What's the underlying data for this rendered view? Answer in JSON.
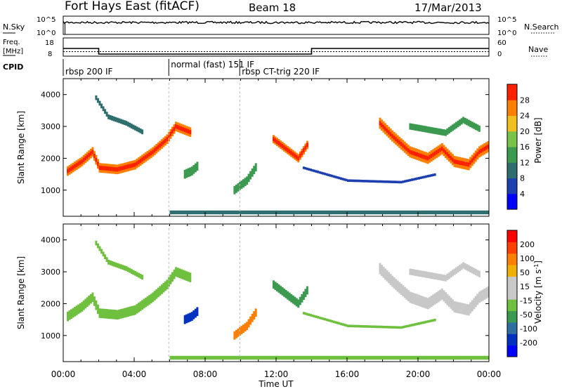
{
  "header": {
    "title": "Fort Hays East (fitACF)",
    "beam": "Beam 18",
    "date": "17/Mar/2013"
  },
  "top_panels": {
    "nsky_label": "N.Sky",
    "nsearch_label": "N.Search",
    "freq_label_1": "Freq.",
    "freq_label_2": "[MHz]",
    "nave_label": "Nave",
    "cpid_label": "CPID",
    "nsky_ticks": [
      "10^5",
      "10^0"
    ],
    "nsearch_ticks": [
      "10^5",
      "10^0"
    ],
    "freq_ticks": [
      "18",
      "8"
    ],
    "nave_ticks": [
      "60",
      "0"
    ],
    "freq_steps": [
      [
        0,
        13.5
      ],
      [
        2.0,
        9.5
      ],
      [
        14.0,
        13.5
      ],
      [
        24,
        13.5
      ]
    ],
    "nave_level": 15
  },
  "cpid_segments": [
    {
      "start": 0.0,
      "label": "rbsp 200 IF"
    },
    {
      "start": 5.95,
      "label": "normal (fast) 151 IF"
    },
    {
      "start": 9.95,
      "label": "rbsp CT-trig 220 IF"
    }
  ],
  "power_colorbar": {
    "label": "Power [dB]",
    "ticks": [
      "28",
      "24",
      "20",
      "16",
      "12",
      "8",
      "4"
    ],
    "colors": [
      "#0000ff",
      "#1e3fb0",
      "#2e6e6e",
      "#3c9a50",
      "#7ac24a",
      "#f0c020",
      "#ff8000",
      "#ff2000"
    ]
  },
  "velocity_colorbar": {
    "label": "Velocity [m s",
    "label_sup": "-1",
    "label_end": "]",
    "ticks": [
      "200",
      "100",
      "50",
      "15",
      "-15",
      "-50",
      "-100",
      "-200"
    ],
    "colors": [
      "#ff0000",
      "#ff4000",
      "#ff8000",
      "#f0b000",
      "#c8c8c8",
      "#c8c8c8",
      "#70c040",
      "#3c9a50",
      "#2e6ea0",
      "#0030c0",
      "#0000ff"
    ]
  },
  "chart_data": {
    "type": "heatmap",
    "ylabel": "Slant Range [km]",
    "xlabel": "Time UT",
    "x_ticks": [
      "00:00",
      "04:00",
      "08:00",
      "12:00",
      "16:00",
      "20:00",
      "00:00"
    ],
    "y_ticks": [
      "1000",
      "2000",
      "3000",
      "4000"
    ],
    "xlim": [
      0,
      24
    ],
    "ylim": [
      180,
      4500
    ],
    "features": [
      {
        "name": "early band",
        "points": [
          [
            0.2,
            1600
          ],
          [
            1.0,
            1900
          ],
          [
            1.6,
            2200
          ],
          [
            2.0,
            1700
          ],
          [
            3.0,
            1650
          ],
          [
            4.0,
            1800
          ],
          [
            5.0,
            2200
          ],
          [
            5.8,
            2600
          ],
          [
            6.3,
            3000
          ],
          [
            7.2,
            2800
          ]
        ],
        "width": 300,
        "power": 24,
        "velocity": 0
      },
      {
        "name": "upper wisps",
        "points": [
          [
            1.8,
            3900
          ],
          [
            2.5,
            3300
          ],
          [
            3.5,
            3100
          ],
          [
            4.5,
            2800
          ]
        ],
        "width": 150,
        "power": 10,
        "velocity": 10
      },
      {
        "name": "patch 07:00",
        "points": [
          [
            6.8,
            1500
          ],
          [
            7.2,
            1600
          ],
          [
            7.6,
            1800
          ]
        ],
        "width": 280,
        "power": 12,
        "velocity": 180
      },
      {
        "name": "patch 10:00",
        "points": [
          [
            9.6,
            1000
          ],
          [
            10.3,
            1300
          ],
          [
            10.9,
            1800
          ]
        ],
        "width": 260,
        "power": 14,
        "velocity": -180
      },
      {
        "name": "band 12:00",
        "points": [
          [
            11.8,
            2600
          ],
          [
            12.5,
            2300
          ],
          [
            13.2,
            2000
          ],
          [
            13.8,
            2500
          ]
        ],
        "width": 260,
        "power": 24,
        "velocity": 40
      },
      {
        "name": "faint arc",
        "points": [
          [
            13.5,
            1700
          ],
          [
            16.0,
            1300
          ],
          [
            19.0,
            1250
          ],
          [
            21.0,
            1500
          ]
        ],
        "width": 80,
        "power": 6,
        "velocity": 0
      },
      {
        "name": "late band",
        "points": [
          [
            17.8,
            3100
          ],
          [
            18.5,
            2700
          ],
          [
            19.5,
            2200
          ],
          [
            20.5,
            2000
          ],
          [
            21.3,
            2300
          ],
          [
            22.0,
            1900
          ],
          [
            22.8,
            1800
          ],
          [
            23.4,
            2200
          ],
          [
            24.0,
            2400
          ]
        ],
        "width": 350,
        "power": 26,
        "velocity": -5
      },
      {
        "name": "late upper",
        "points": [
          [
            19.5,
            3000
          ],
          [
            20.5,
            2900
          ],
          [
            21.5,
            2800
          ],
          [
            22.5,
            3200
          ],
          [
            23.5,
            2900
          ]
        ],
        "width": 200,
        "power": 12,
        "velocity": -20
      },
      {
        "name": "ground noise",
        "points": [
          [
            6.0,
            300
          ],
          [
            12.0,
            300
          ],
          [
            18.0,
            300
          ],
          [
            24.0,
            300
          ]
        ],
        "width": 120,
        "power": 8,
        "velocity": 0
      }
    ]
  }
}
